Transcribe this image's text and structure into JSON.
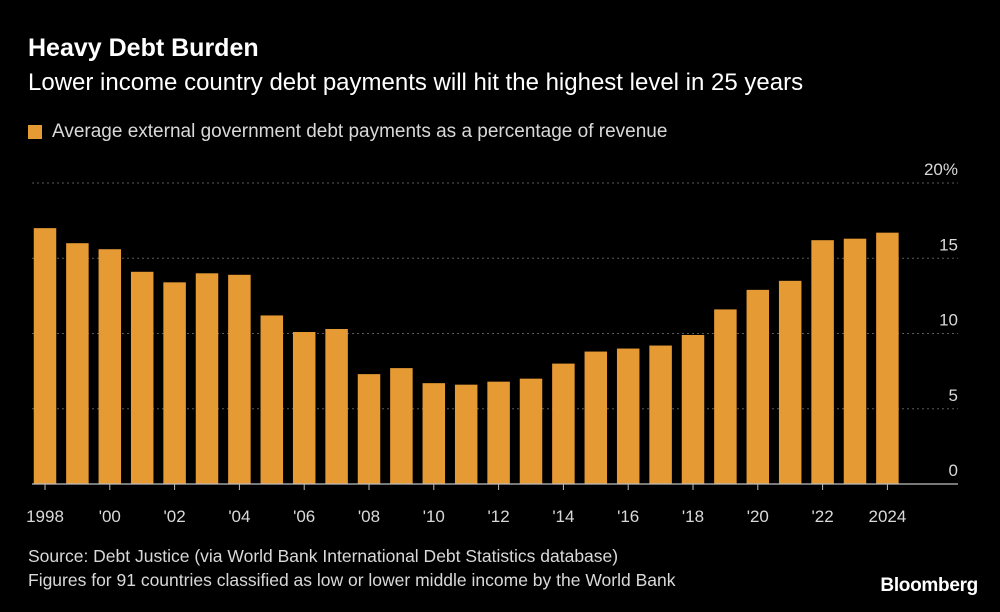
{
  "title": "Heavy Debt Burden",
  "subtitle": "Lower income country debt payments will hit the highest level in 25 years",
  "source": "Source: Debt Justice (via World Bank International Debt Statistics database)",
  "note": "Figures for 91 countries classified as low or lower middle income by the World Bank",
  "brand": "Bloomberg",
  "colors": {
    "bar": "#e69a34",
    "background": "#000000",
    "grid": "#5a5a5a",
    "text": "#d9d9d9"
  },
  "chart_data": {
    "type": "bar",
    "title": "Heavy Debt Burden",
    "legend": [
      "Average external government debt payments as a percentage of revenue"
    ],
    "legend_position": "top-left",
    "xlabel": "",
    "ylabel": "",
    "ylim": [
      0,
      20
    ],
    "yticks": [
      {
        "value": 0,
        "label": "0"
      },
      {
        "value": 5,
        "label": "5"
      },
      {
        "value": 10,
        "label": "10"
      },
      {
        "value": 15,
        "label": "15"
      },
      {
        "value": 20,
        "label": "20%"
      }
    ],
    "grid": true,
    "categories": [
      "1998",
      "1999",
      "2000",
      "2001",
      "2002",
      "2003",
      "2004",
      "2005",
      "2006",
      "2007",
      "2008",
      "2009",
      "2010",
      "2011",
      "2012",
      "2013",
      "2014",
      "2015",
      "2016",
      "2017",
      "2018",
      "2019",
      "2020",
      "2021",
      "2022",
      "2023",
      "2024"
    ],
    "xtick_labels": [
      "1998",
      "",
      "'00",
      "",
      "'02",
      "",
      "'04",
      "",
      "'06",
      "",
      "'08",
      "",
      "'10",
      "",
      "'12",
      "",
      "'14",
      "",
      "'16",
      "",
      "'18",
      "",
      "'20",
      "",
      "'22",
      "",
      "2024"
    ],
    "values": [
      17.0,
      16.0,
      15.6,
      14.1,
      13.4,
      14.0,
      13.9,
      11.2,
      10.1,
      10.3,
      7.3,
      7.7,
      6.7,
      6.6,
      6.8,
      7.0,
      8.0,
      8.8,
      9.0,
      9.2,
      9.9,
      11.6,
      12.9,
      13.5,
      16.2,
      16.3,
      16.7
    ]
  }
}
